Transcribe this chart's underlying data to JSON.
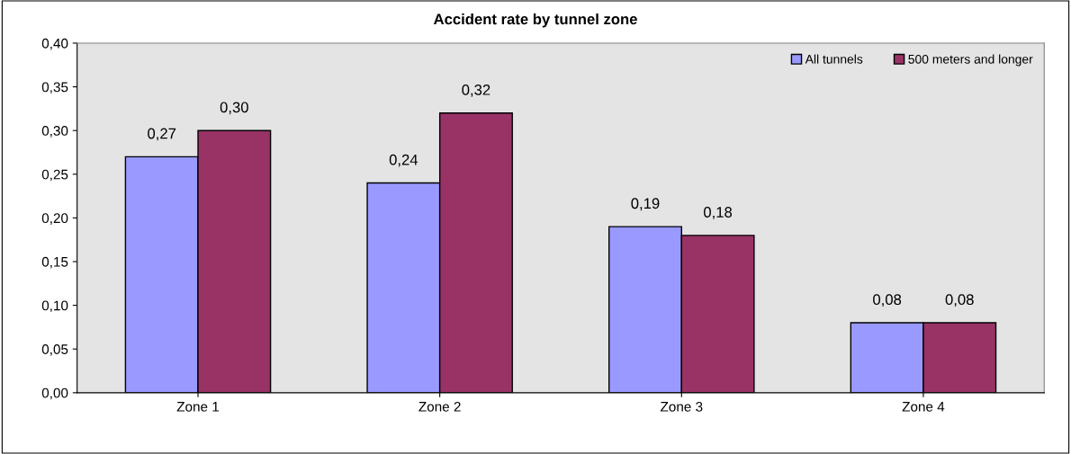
{
  "chart_data": {
    "type": "bar",
    "title": "Accident rate by tunnel zone",
    "categories": [
      "Zone 1",
      "Zone 2",
      "Zone 3",
      "Zone 4"
    ],
    "series": [
      {
        "name": "All tunnels",
        "color": "#9999ff",
        "values": [
          0.27,
          0.24,
          0.19,
          0.08
        ],
        "value_labels": [
          "0,27",
          "0,24",
          "0,19",
          "0,08"
        ]
      },
      {
        "name": "500 meters and longer",
        "color": "#993366",
        "values": [
          0.3,
          0.32,
          0.18,
          0.08
        ],
        "value_labels": [
          "0,30",
          "0,32",
          "0,18",
          "0,08"
        ]
      }
    ],
    "ylim": [
      0,
      0.4
    ],
    "yticks": [
      {
        "value": 0,
        "label": "0,00"
      },
      {
        "value": 0.05,
        "label": "0,05"
      },
      {
        "value": 0.1,
        "label": "0,10"
      },
      {
        "value": 0.15,
        "label": "0,15"
      },
      {
        "value": 0.2,
        "label": "0,20"
      },
      {
        "value": 0.25,
        "label": "0,25"
      },
      {
        "value": 0.3,
        "label": "0,30"
      },
      {
        "value": 0.35,
        "label": "0,35"
      },
      {
        "value": 0.4,
        "label": "0,40"
      }
    ],
    "grid": false,
    "legend": "top right"
  }
}
